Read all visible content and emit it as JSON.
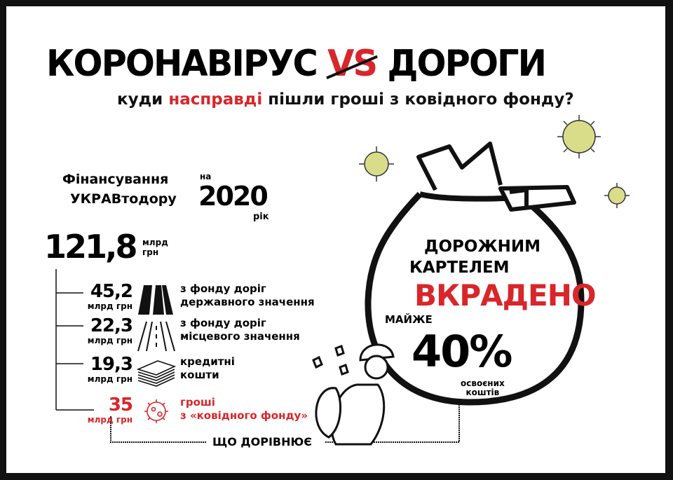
{
  "title": {
    "part1": "КОРОНАВІРУС",
    "vs": "VS",
    "part2": "ДОРОГИ"
  },
  "subtitle": {
    "before": "куди ",
    "highlight": "насправді",
    "after": " пішли гроші з ковідного фонду?"
  },
  "funding": {
    "line1": "Фінансування",
    "on": "на",
    "line2": "УКРАВтодору",
    "year": "2020",
    "year_word": "рік"
  },
  "total": {
    "value": "121,8",
    "unit_line1": "млрд",
    "unit_line2": "грн"
  },
  "items": [
    {
      "value": "45,2",
      "unit": "млрд грн",
      "icon": "highway-icon",
      "line1": "з фонду доріг",
      "line2": "державного значення",
      "color": "#111111"
    },
    {
      "value": "22,3",
      "unit": "млрд грн",
      "icon": "local-road-icon",
      "line1": "з фонду доріг",
      "line2": "місцевого значення",
      "color": "#111111"
    },
    {
      "value": "19,3",
      "unit": "млрд грн",
      "icon": "money-stack-icon",
      "line1": "кредитні",
      "line2": "кошти",
      "color": "#111111"
    },
    {
      "value": "35",
      "unit": "млрд грн",
      "icon": "virus-icon",
      "line1": "гроші",
      "line2": "з «ковідного фонду»",
      "color": "#d8262a"
    }
  ],
  "equals_label": "ЩО ДОРІВНЮЄ",
  "bag": {
    "line1": "ДОРОЖНИМ",
    "line2": "КАРТЕЛЕМ",
    "stolen": "ВКРАДЕНО",
    "almost": "МАЙЖЕ",
    "percent": "40%",
    "note_line1": "освоєних",
    "note_line2": "коштів"
  },
  "colors": {
    "accent": "#d8262a",
    "virus": "#d9dd8a"
  }
}
